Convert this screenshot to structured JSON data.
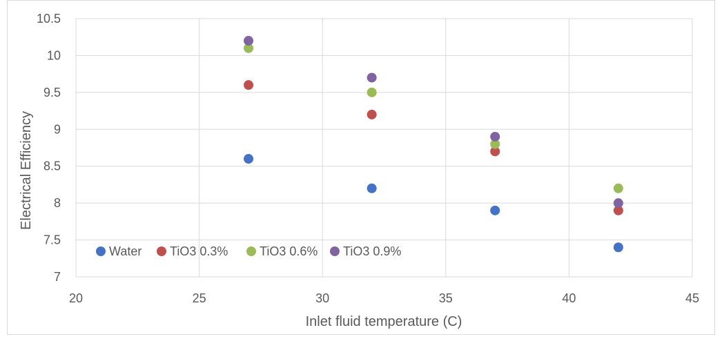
{
  "chart_data": {
    "type": "scatter",
    "title": "",
    "xlabel": "Inlet fluid temperature (C)",
    "ylabel": "Electrical Efficiency",
    "xlim": [
      20,
      45
    ],
    "ylim": [
      7,
      10.5
    ],
    "x_ticks": [
      "20",
      "25",
      "30",
      "35",
      "40",
      "45"
    ],
    "y_ticks": [
      "7",
      "7.5",
      "8",
      "8.5",
      "9",
      "9.5",
      "10",
      "10.5"
    ],
    "grid": true,
    "legend_position": "bottom-left inside",
    "series": [
      {
        "name": "Water",
        "color": "#4472C4",
        "points": [
          {
            "x": 27,
            "y": 8.6
          },
          {
            "x": 32,
            "y": 8.2
          },
          {
            "x": 37,
            "y": 7.9
          },
          {
            "x": 42,
            "y": 7.4
          }
        ]
      },
      {
        "name": "TiO3 0.3%",
        "color": "#C0504D",
        "points": [
          {
            "x": 27,
            "y": 9.6
          },
          {
            "x": 32,
            "y": 9.2
          },
          {
            "x": 37,
            "y": 8.7
          },
          {
            "x": 42,
            "y": 7.9
          }
        ]
      },
      {
        "name": "TiO3 0.6%",
        "color": "#9BBB59",
        "points": [
          {
            "x": 27,
            "y": 10.1
          },
          {
            "x": 32,
            "y": 9.5
          },
          {
            "x": 37,
            "y": 8.8
          },
          {
            "x": 42,
            "y": 8.2
          }
        ]
      },
      {
        "name": "TiO3 0.9%",
        "color": "#8064A2",
        "points": [
          {
            "x": 27,
            "y": 10.2
          },
          {
            "x": 32,
            "y": 9.7
          },
          {
            "x": 37,
            "y": 8.9
          },
          {
            "x": 42,
            "y": 8.0
          }
        ]
      }
    ]
  },
  "style": {
    "grid_color": "#D9D9D9",
    "axis_text_color": "#595959",
    "border_color": "#D9D9D9"
  }
}
